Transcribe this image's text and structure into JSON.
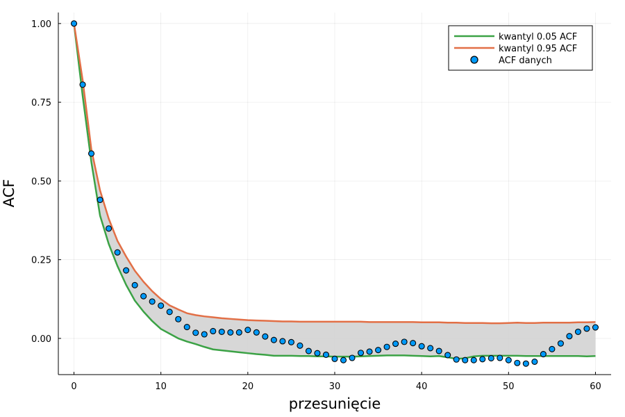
{
  "chart_data": {
    "type": "scatter",
    "xlabel": "przesunięcie",
    "ylabel": "ACF",
    "xlim": [
      -1.8,
      61.8
    ],
    "ylim": [
      -0.115,
      1.035
    ],
    "x_ticks": [
      0,
      10,
      20,
      30,
      40,
      50,
      60
    ],
    "x_tick_labels": [
      "0",
      "10",
      "20",
      "30",
      "40",
      "50",
      "60"
    ],
    "y_ticks": [
      0.0,
      0.25,
      0.5,
      0.75,
      1.0
    ],
    "y_tick_labels": [
      "0.00",
      "0.25",
      "0.50",
      "0.75",
      "1.00"
    ],
    "grid": true,
    "legend_position": "top-right",
    "band_color": "#d3d3d3",
    "series": [
      {
        "name": "kwantyl 0.05 ACF",
        "type": "line",
        "color": "#3ba245",
        "x": [
          0,
          1,
          2,
          3,
          4,
          5,
          6,
          7,
          8,
          9,
          10,
          11,
          12,
          13,
          14,
          15,
          16,
          17,
          18,
          19,
          20,
          21,
          22,
          23,
          24,
          25,
          26,
          27,
          28,
          29,
          30,
          31,
          32,
          33,
          34,
          35,
          36,
          37,
          38,
          39,
          40,
          41,
          42,
          43,
          44,
          45,
          46,
          47,
          48,
          49,
          50,
          51,
          52,
          53,
          54,
          55,
          56,
          57,
          58,
          59,
          60
        ],
        "y": [
          1.0,
          0.77,
          0.56,
          0.39,
          0.3,
          0.23,
          0.17,
          0.12,
          0.085,
          0.055,
          0.03,
          0.015,
          0.0,
          -0.01,
          -0.018,
          -0.027,
          -0.035,
          -0.038,
          -0.041,
          -0.044,
          -0.047,
          -0.05,
          -0.052,
          -0.055,
          -0.055,
          -0.055,
          -0.056,
          -0.056,
          -0.057,
          -0.057,
          -0.058,
          -0.058,
          -0.058,
          -0.057,
          -0.056,
          -0.055,
          -0.054,
          -0.054,
          -0.054,
          -0.055,
          -0.056,
          -0.057,
          -0.056,
          -0.06,
          -0.065,
          -0.063,
          -0.057,
          -0.055,
          -0.055,
          -0.055,
          -0.055,
          -0.055,
          -0.056,
          -0.056,
          -0.056,
          -0.056,
          -0.056,
          -0.056,
          -0.056,
          -0.057,
          -0.056
        ]
      },
      {
        "name": "kwantyl 0.95 ACF",
        "type": "line",
        "color": "#e26f46",
        "x": [
          0,
          1,
          2,
          3,
          4,
          5,
          6,
          7,
          8,
          9,
          10,
          11,
          12,
          13,
          14,
          15,
          16,
          17,
          18,
          19,
          20,
          21,
          22,
          23,
          24,
          25,
          26,
          27,
          28,
          29,
          30,
          31,
          32,
          33,
          34,
          35,
          36,
          37,
          38,
          39,
          40,
          41,
          42,
          43,
          44,
          45,
          46,
          47,
          48,
          49,
          50,
          51,
          52,
          53,
          54,
          55,
          56,
          57,
          58,
          59,
          60
        ],
        "y": [
          1.0,
          0.82,
          0.6,
          0.47,
          0.38,
          0.31,
          0.26,
          0.215,
          0.18,
          0.15,
          0.125,
          0.105,
          0.092,
          0.08,
          0.074,
          0.07,
          0.067,
          0.064,
          0.062,
          0.06,
          0.058,
          0.057,
          0.056,
          0.055,
          0.054,
          0.054,
          0.053,
          0.053,
          0.053,
          0.053,
          0.053,
          0.053,
          0.053,
          0.053,
          0.052,
          0.052,
          0.052,
          0.052,
          0.052,
          0.052,
          0.051,
          0.051,
          0.051,
          0.05,
          0.05,
          0.049,
          0.049,
          0.049,
          0.048,
          0.048,
          0.049,
          0.05,
          0.049,
          0.049,
          0.05,
          0.05,
          0.05,
          0.05,
          0.051,
          0.051,
          0.052
        ]
      },
      {
        "name": "ACF danych",
        "type": "scatter",
        "color": "#009af9",
        "x": [
          0,
          1,
          2,
          3,
          4,
          5,
          6,
          7,
          8,
          9,
          10,
          11,
          12,
          13,
          14,
          15,
          16,
          17,
          18,
          19,
          20,
          21,
          22,
          23,
          24,
          25,
          26,
          27,
          28,
          29,
          30,
          31,
          32,
          33,
          34,
          35,
          36,
          37,
          38,
          39,
          40,
          41,
          42,
          43,
          44,
          45,
          46,
          47,
          48,
          49,
          50,
          51,
          52,
          53,
          54,
          55,
          56,
          57,
          58,
          59,
          60
        ],
        "y": [
          1.0,
          0.806,
          0.587,
          0.44,
          0.349,
          0.273,
          0.216,
          0.169,
          0.134,
          0.117,
          0.104,
          0.084,
          0.061,
          0.036,
          0.018,
          0.013,
          0.023,
          0.021,
          0.019,
          0.019,
          0.027,
          0.019,
          0.006,
          -0.005,
          -0.009,
          -0.012,
          -0.023,
          -0.04,
          -0.047,
          -0.052,
          -0.065,
          -0.069,
          -0.062,
          -0.046,
          -0.042,
          -0.037,
          -0.027,
          -0.017,
          -0.011,
          -0.015,
          -0.025,
          -0.031,
          -0.04,
          -0.053,
          -0.067,
          -0.069,
          -0.069,
          -0.066,
          -0.063,
          -0.062,
          -0.069,
          -0.078,
          -0.08,
          -0.074,
          -0.05,
          -0.034,
          -0.016,
          0.007,
          0.021,
          0.031,
          0.035
        ]
      }
    ]
  }
}
